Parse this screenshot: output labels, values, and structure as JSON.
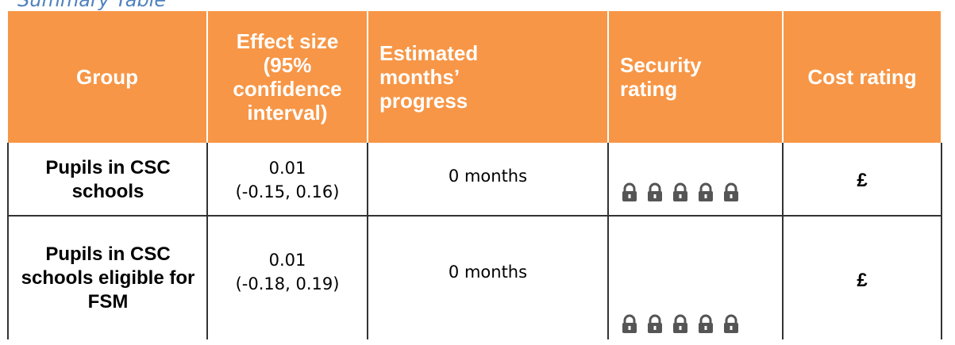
{
  "title": "Summary Table",
  "table": {
    "header": [
      "Group",
      "Effect size (95% confidence interval)",
      "Estimated months’ progress",
      "Security rating",
      "Cost rating"
    ],
    "rows": [
      {
        "group": "Pupils in CSC schools",
        "effect": "0.01",
        "ci": "(-0.15, 0.16)",
        "months": "0 months",
        "cost": "£"
      },
      {
        "group": "Pupils in CSC schools eligible for FSM",
        "effect": "0.01",
        "ci": "(-0.18, 0.19)",
        "months": "0 months",
        "cost": "£"
      }
    ]
  }
}
